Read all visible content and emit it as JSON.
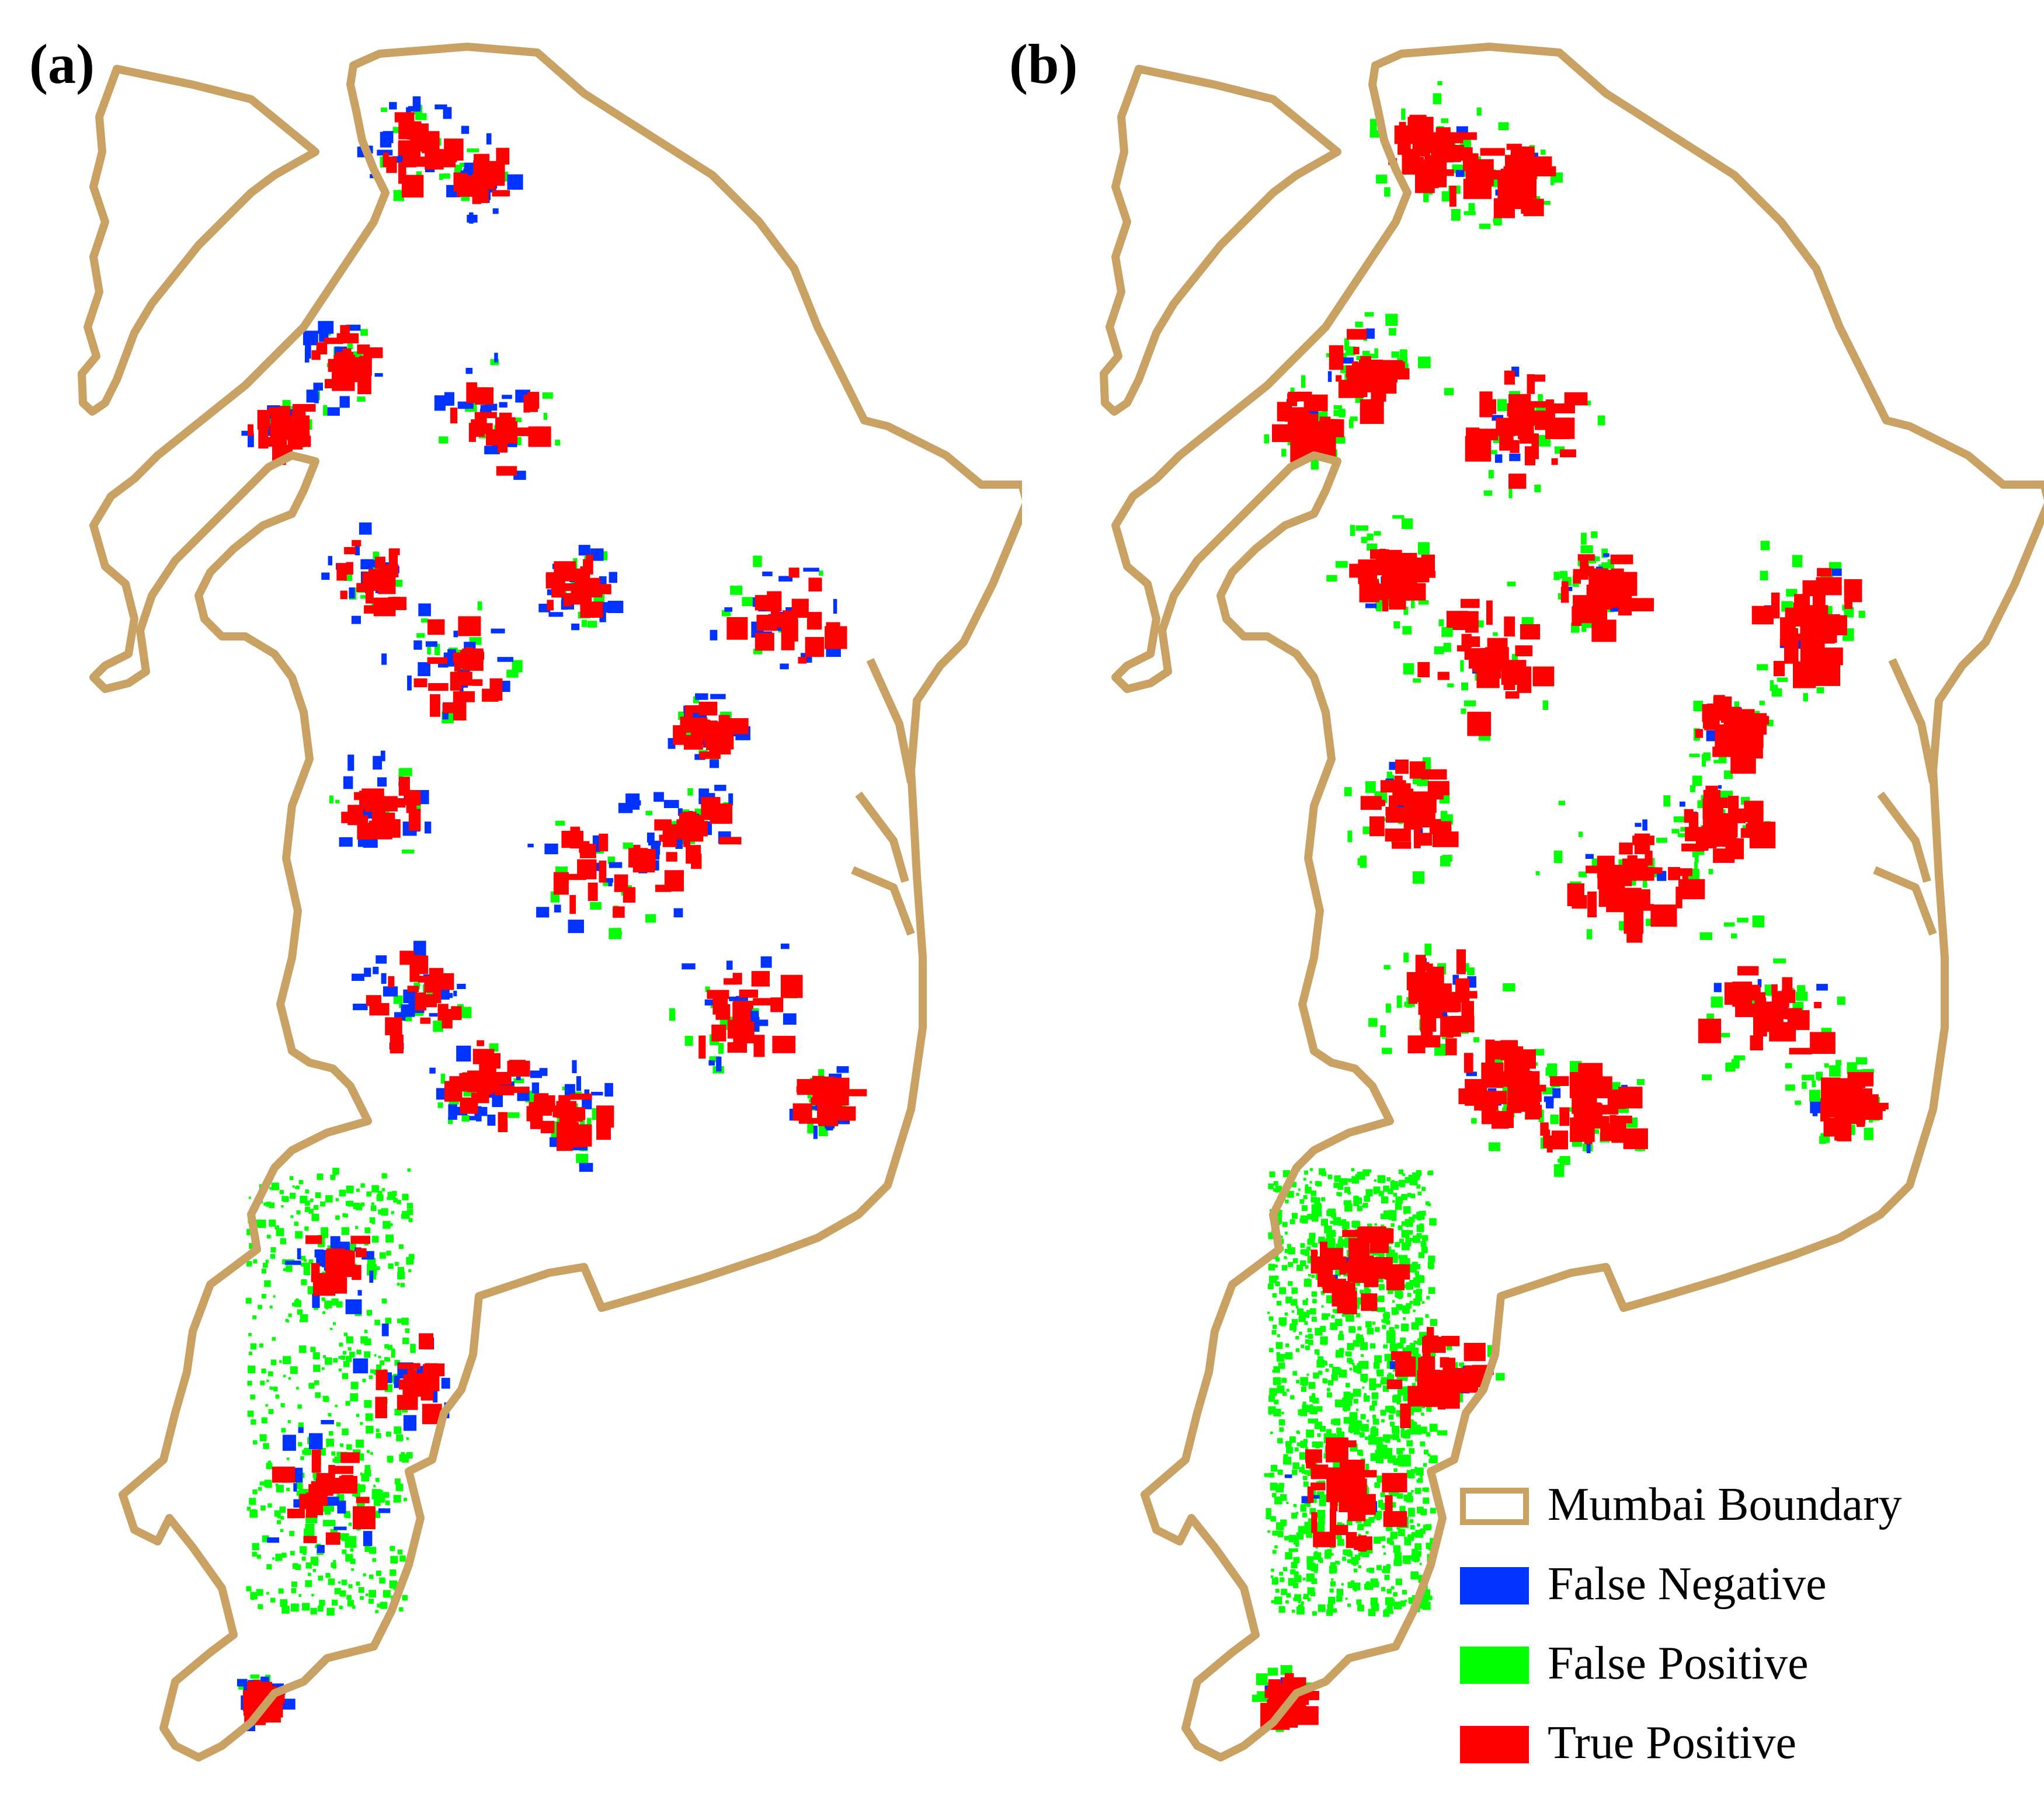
{
  "panels": [
    {
      "id": "a",
      "label": "(a)"
    },
    {
      "id": "b",
      "label": "(b)"
    }
  ],
  "legend": {
    "items": [
      {
        "label": "Mumbai Boundary",
        "style": "outline",
        "color": "#c8a163"
      },
      {
        "label": "False Negative",
        "style": "fill",
        "color": "#0033ff"
      },
      {
        "label": "False Positive",
        "style": "fill",
        "color": "#00ff00"
      },
      {
        "label": "True Positive",
        "style": "fill",
        "color": "#ff0000"
      }
    ]
  },
  "colors": {
    "boundary": "#c8a163",
    "false_negative": "#0033ff",
    "false_positive": "#00ff00",
    "true_positive": "#ff0000",
    "background": "#ffffff"
  }
}
